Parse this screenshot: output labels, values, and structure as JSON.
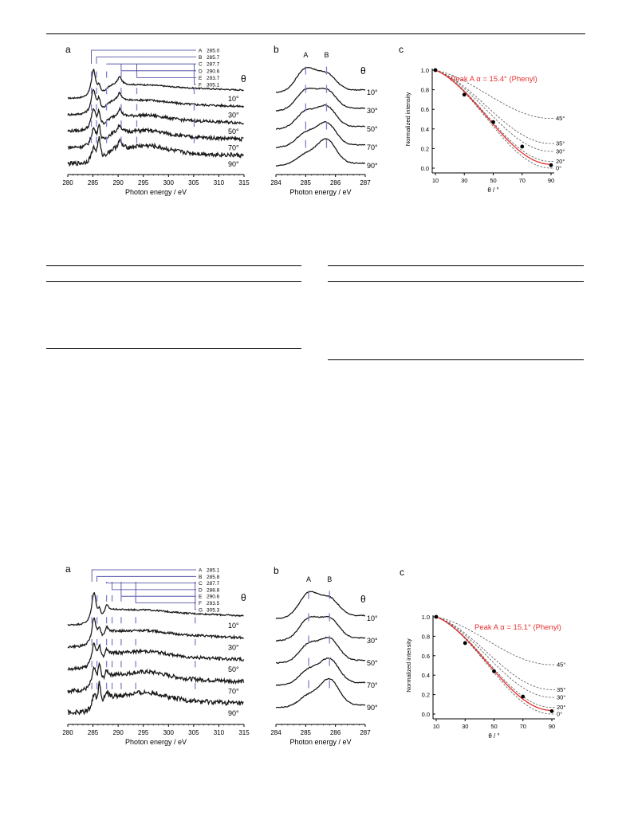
{
  "figures": [
    {
      "panel_a": {
        "letter": "a",
        "theta_symbol": "θ",
        "xlabel": "Photon energy / eV",
        "xticks": [
          280,
          285,
          290,
          295,
          300,
          305,
          310,
          315
        ],
        "xlim": [
          280,
          315
        ],
        "peaks": [
          {
            "label": "A",
            "energy": "285.0",
            "value": 285.0
          },
          {
            "label": "B",
            "energy": "285.7",
            "value": 285.7
          },
          {
            "label": "C",
            "energy": "287.7",
            "value": 287.7
          },
          {
            "label": "D",
            "energy": "290.6",
            "value": 290.6
          },
          {
            "label": "E",
            "energy": "293.7",
            "value": 293.7
          },
          {
            "label": "F",
            "energy": "305.1",
            "value": 305.1
          }
        ],
        "angles": [
          "10°",
          "30°",
          "50°",
          "70°",
          "90°"
        ]
      },
      "panel_b": {
        "letter": "b",
        "theta_symbol": "θ",
        "xlabel": "Photon energy / eV",
        "xticks": [
          284,
          285,
          286,
          287
        ],
        "xlim": [
          284,
          287
        ],
        "peaks": [
          {
            "label": "A",
            "value": 285.0
          },
          {
            "label": "B",
            "value": 285.7
          }
        ],
        "angles": [
          "10°",
          "30°",
          "50°",
          "70°",
          "90°"
        ]
      },
      "panel_c": {
        "letter": "c",
        "ylabel": "Normalized intensity",
        "xlabel": "θ / °",
        "xticks": [
          10,
          30,
          50,
          70,
          90
        ],
        "yticks": [
          "0.0",
          "0.2",
          "0.4",
          "0.6",
          "0.8",
          "1.0"
        ],
        "xlim": [
          10,
          90
        ],
        "ylim": [
          0,
          1.0
        ],
        "annotation": "Peak A   α = 15.4° (Phenyl)",
        "fit_alpha": 15.4,
        "measured": {
          "theta": [
            10,
            30,
            50,
            70,
            90
          ],
          "intensity": [
            1.0,
            0.75,
            0.47,
            0.22,
            0.03
          ]
        },
        "reference_alphas": [
          {
            "label": "45°",
            "value": 45
          },
          {
            "label": "35°",
            "value": 35
          },
          {
            "label": "30°",
            "value": 30
          },
          {
            "label": "20°",
            "value": 20
          },
          {
            "label": "0°",
            "value": 0
          }
        ]
      }
    },
    {
      "panel_a": {
        "letter": "a",
        "theta_symbol": "θ",
        "xlabel": "Photon energy / eV",
        "xticks": [
          280,
          285,
          290,
          295,
          300,
          305,
          310,
          315
        ],
        "xlim": [
          280,
          315
        ],
        "peaks": [
          {
            "label": "A",
            "energy": "285.1",
            "value": 285.1
          },
          {
            "label": "B",
            "energy": "285.8",
            "value": 285.8
          },
          {
            "label": "C",
            "energy": "287.7",
            "value": 287.7
          },
          {
            "label": "D",
            "energy": "288.8",
            "value": 288.8
          },
          {
            "label": "E",
            "energy": "290.6",
            "value": 290.6
          },
          {
            "label": "F",
            "energy": "293.5",
            "value": 293.5
          },
          {
            "label": "G",
            "energy": "305.3",
            "value": 305.3
          }
        ],
        "angles": [
          "10°",
          "30°",
          "50°",
          "70°",
          "90°"
        ]
      },
      "panel_b": {
        "letter": "b",
        "theta_symbol": "θ",
        "xlabel": "Photon energy / eV",
        "xticks": [
          284,
          285,
          286,
          287
        ],
        "xlim": [
          284,
          287
        ],
        "peaks": [
          {
            "label": "A",
            "value": 285.1
          },
          {
            "label": "B",
            "value": 285.8
          }
        ],
        "angles": [
          "10°",
          "30°",
          "50°",
          "70°",
          "90°"
        ]
      },
      "panel_c": {
        "letter": "c",
        "ylabel": "Normalized intensity",
        "xlabel": "θ / °",
        "xticks": [
          10,
          30,
          50,
          70,
          90
        ],
        "yticks": [
          "0.0",
          "0.2",
          "0.4",
          "0.6",
          "0.8",
          "1.0"
        ],
        "xlim": [
          10,
          90
        ],
        "ylim": [
          0,
          1.0
        ],
        "annotation": "Peak A   α = 15.1° (Phenyl)",
        "fit_alpha": 15.1,
        "measured": {
          "theta": [
            10,
            30,
            50,
            70,
            90
          ],
          "intensity": [
            1.0,
            0.73,
            0.44,
            0.18,
            0.03
          ]
        },
        "reference_alphas": [
          {
            "label": "45°",
            "value": 45
          },
          {
            "label": "35°",
            "value": 35
          },
          {
            "label": "30°",
            "value": 30
          },
          {
            "label": "20°",
            "value": 20
          },
          {
            "label": "0°",
            "value": 0
          }
        ]
      }
    }
  ],
  "colors": {
    "curve": "#1a1a1a",
    "peak_marker": "#8080c8",
    "peak_leader": "#3a3a9a",
    "fit": "#e53030",
    "axis": "#000000",
    "reference": "#555555"
  }
}
